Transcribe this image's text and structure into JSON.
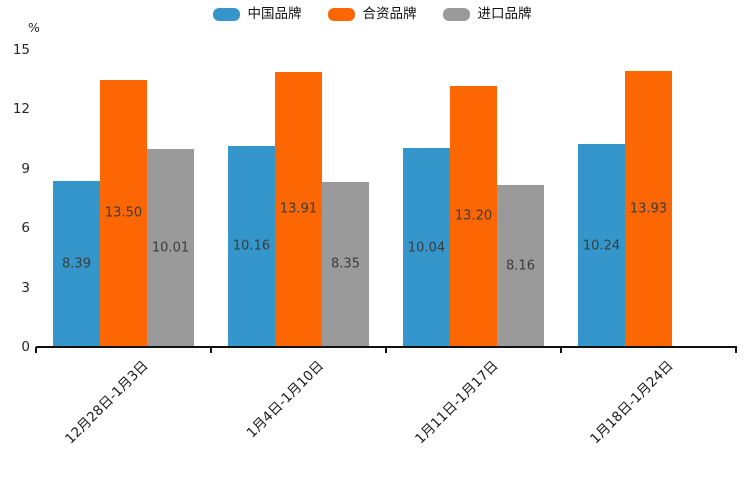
{
  "chart_data": {
    "type": "bar",
    "title": "",
    "ylabel": "%",
    "xlabel": "",
    "grid": false,
    "legend_position": "top-center",
    "ylim": [
      0,
      15
    ],
    "yticks": [
      0,
      3,
      6,
      9,
      12,
      15
    ],
    "categories": [
      "12月28日-1月3日",
      "1月4日-1月10日",
      "1月11日-1月17日",
      "1月18日-1月24日"
    ],
    "series": [
      {
        "name": "中国品牌",
        "color": "#3496CB",
        "values": [
          8.39,
          10.16,
          10.04,
          10.24
        ],
        "labels": [
          "8.39",
          "10.16",
          "10.04",
          "10.24"
        ]
      },
      {
        "name": "合资品牌",
        "color": "#FC6603",
        "values": [
          13.5,
          13.91,
          13.2,
          13.93
        ],
        "labels": [
          "13.50",
          "13.91",
          "13.20",
          "13.93"
        ]
      },
      {
        "name": "进口品牌",
        "color": "#9A9A9A",
        "values": [
          10.01,
          8.35,
          8.16,
          null
        ],
        "labels": [
          "10.01",
          "8.35",
          "8.16",
          ""
        ]
      }
    ]
  },
  "colors": {
    "background": "#FFFFFF",
    "axis_line": "#111111",
    "tick_text": "#262626",
    "bar_value_text": "#3C3C3C",
    "series_blue": "#3496CB",
    "series_orange": "#FC6603",
    "series_gray": "#9A9A9A"
  }
}
